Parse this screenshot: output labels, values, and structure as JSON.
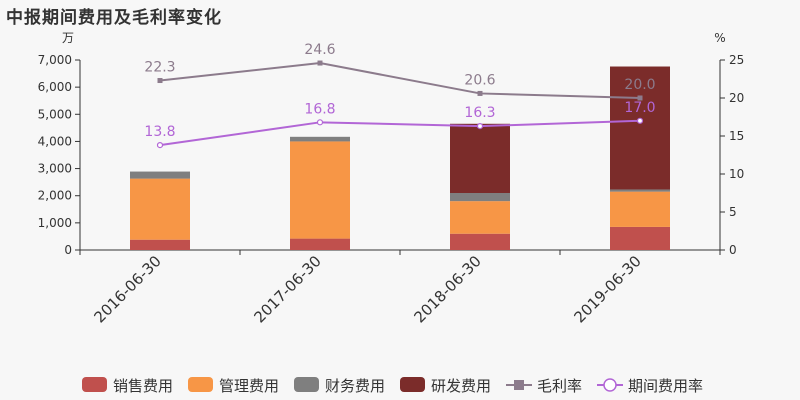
{
  "title": "中报期间费用及毛利率变化",
  "chart_data": {
    "type": "bar",
    "stacked": true,
    "categories": [
      "2016-06-30",
      "2017-06-30",
      "2018-06-30",
      "2019-06-30"
    ],
    "left_axis": {
      "unit": "万",
      "ylim": [
        0,
        7000
      ],
      "ticks": [
        0,
        1000,
        2000,
        3000,
        4000,
        5000,
        6000,
        7000
      ],
      "tick_labels": [
        "0",
        "1,000",
        "2,000",
        "3,000",
        "4,000",
        "5,000",
        "6,000",
        "7,000"
      ]
    },
    "right_axis": {
      "unit": "%",
      "ylim": [
        0,
        25
      ],
      "ticks": [
        0,
        5,
        10,
        15,
        20,
        25
      ],
      "tick_labels": [
        "0",
        "5",
        "10",
        "15",
        "20",
        "25"
      ]
    },
    "bar_series": [
      {
        "name": "销售费用",
        "color": "#c0504d",
        "values": [
          380,
          420,
          600,
          850
        ]
      },
      {
        "name": "管理费用",
        "color": "#f79646",
        "values": [
          2250,
          3580,
          1200,
          1300
        ]
      },
      {
        "name": "财务费用",
        "color": "#7f7f7f",
        "values": [
          260,
          170,
          300,
          80
        ]
      },
      {
        "name": "研发费用",
        "color": "#7b2c2a",
        "values": [
          0,
          0,
          2550,
          4530
        ]
      }
    ],
    "line_series": [
      {
        "name": "毛利率",
        "color": "#8c7b8c",
        "marker": "square",
        "axis": "right",
        "values": [
          22.3,
          24.6,
          20.6,
          20.0
        ],
        "labels": [
          "22.3",
          "24.6",
          "20.6",
          "20.0"
        ]
      },
      {
        "name": "期间费用率",
        "color": "#b266d6",
        "marker": "circle",
        "axis": "right",
        "values": [
          13.8,
          16.8,
          16.3,
          17.0
        ],
        "labels": [
          "13.8",
          "16.8",
          "16.3",
          "17.0"
        ]
      }
    ],
    "legend_position": "bottom",
    "grid": false
  }
}
